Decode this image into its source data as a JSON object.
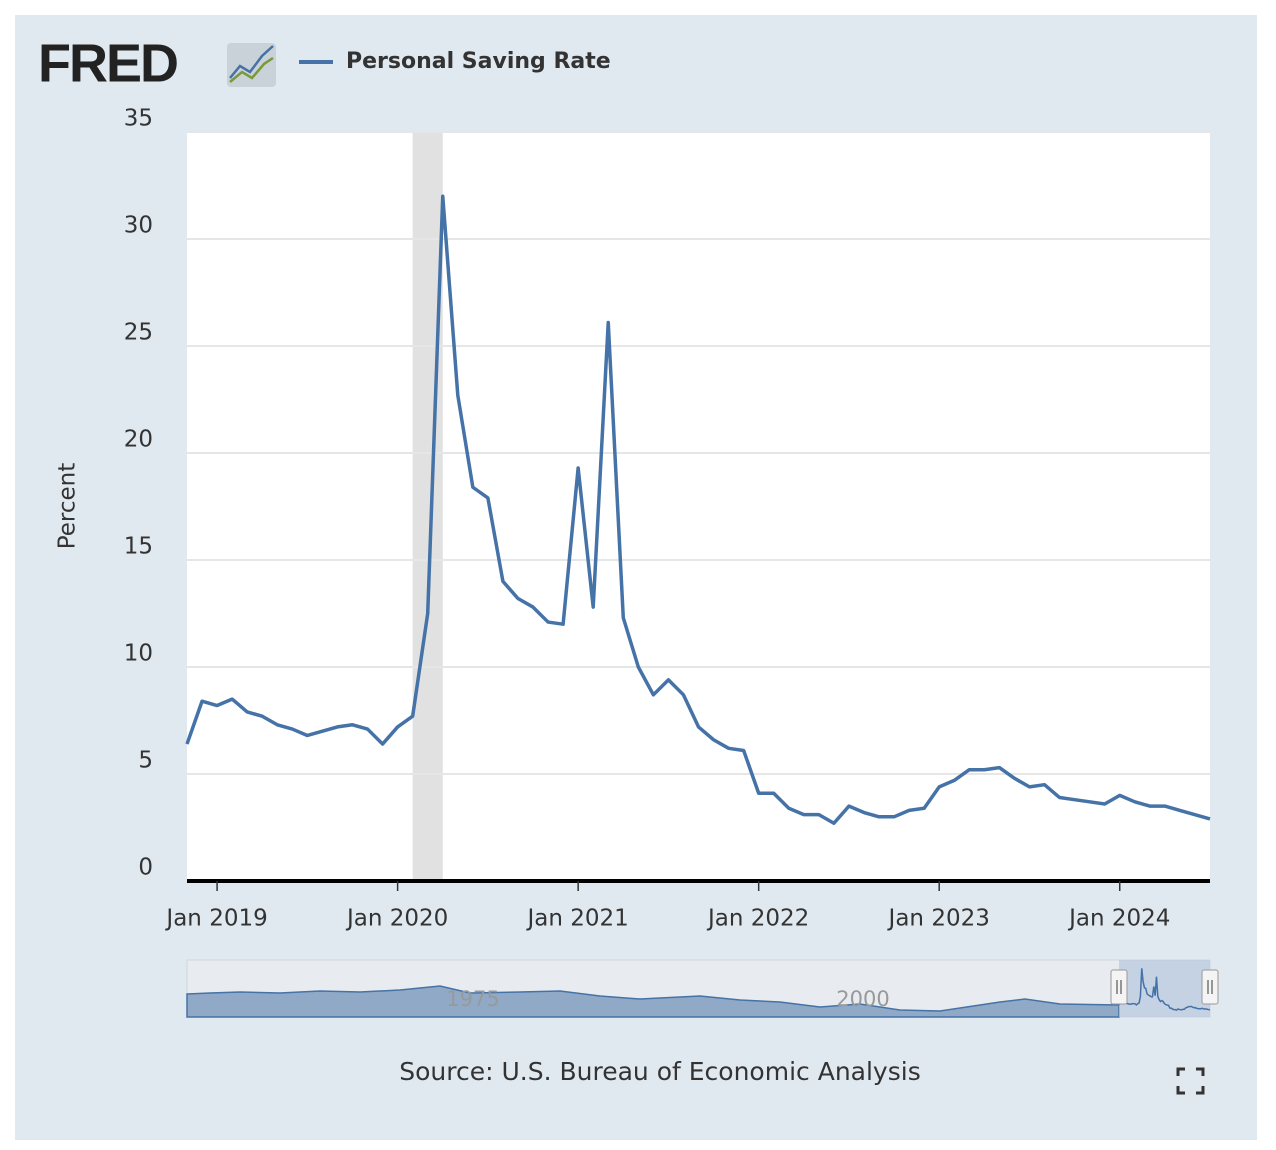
{
  "chart_data": {
    "type": "line",
    "logo": "FRED",
    "y_label": "Percent",
    "source": "Source: U.S. Bureau of Economic Analysis",
    "x": [
      "2018-11",
      "2018-12",
      "2019-01",
      "2019-02",
      "2019-03",
      "2019-04",
      "2019-05",
      "2019-06",
      "2019-07",
      "2019-08",
      "2019-09",
      "2019-10",
      "2019-11",
      "2019-12",
      "2020-01",
      "2020-02",
      "2020-03",
      "2020-04",
      "2020-05",
      "2020-06",
      "2020-07",
      "2020-08",
      "2020-09",
      "2020-10",
      "2020-11",
      "2020-12",
      "2021-01",
      "2021-02",
      "2021-03",
      "2021-04",
      "2021-05",
      "2021-06",
      "2021-07",
      "2021-08",
      "2021-09",
      "2021-10",
      "2021-11",
      "2021-12",
      "2022-01",
      "2022-02",
      "2022-03",
      "2022-04",
      "2022-05",
      "2022-06",
      "2022-07",
      "2022-08",
      "2022-09",
      "2022-10",
      "2022-11",
      "2022-12",
      "2023-01",
      "2023-02",
      "2023-03",
      "2023-04",
      "2023-05",
      "2023-06",
      "2023-07",
      "2023-08",
      "2023-09",
      "2023-10",
      "2023-11",
      "2023-12",
      "2024-01",
      "2024-02",
      "2024-03",
      "2024-04",
      "2024-05",
      "2024-06",
      "2024-07"
    ],
    "series": [
      {
        "name": "Personal Saving Rate",
        "color": "#4572a7",
        "values": [
          6.4,
          8.4,
          8.2,
          8.5,
          7.9,
          7.7,
          7.3,
          7.1,
          6.8,
          7.0,
          7.2,
          7.3,
          7.1,
          6.4,
          7.2,
          7.7,
          12.5,
          32.0,
          22.7,
          18.4,
          17.9,
          14.0,
          13.2,
          12.8,
          12.1,
          12.0,
          19.3,
          12.8,
          26.1,
          12.3,
          10.0,
          8.7,
          9.4,
          8.7,
          7.2,
          6.6,
          6.2,
          6.1,
          4.1,
          4.1,
          3.4,
          3.1,
          3.1,
          2.7,
          3.5,
          3.2,
          3.0,
          3.0,
          3.3,
          3.4,
          4.4,
          4.7,
          5.2,
          5.2,
          5.3,
          4.8,
          4.4,
          4.5,
          3.9,
          3.8,
          3.7,
          3.6,
          4.0,
          3.7,
          3.5,
          3.5,
          3.3,
          3.1,
          2.9
        ]
      }
    ],
    "recessions": [
      {
        "start": "2020-02",
        "end": "2020-04"
      }
    ],
    "ylim": [
      0,
      35
    ],
    "yticks": [
      0,
      5,
      10,
      15,
      20,
      25,
      30,
      35
    ],
    "xticks": [
      {
        "value": "2019-01",
        "label": "Jan 2019"
      },
      {
        "value": "2020-01",
        "label": "Jan 2020"
      },
      {
        "value": "2021-01",
        "label": "Jan 2021"
      },
      {
        "value": "2022-01",
        "label": "Jan 2022"
      },
      {
        "value": "2023-01",
        "label": "Jan 2023"
      },
      {
        "value": "2024-01",
        "label": "Jan 2024"
      }
    ],
    "grid": true,
    "navigator_labels": [
      "1975",
      "2000"
    ]
  }
}
